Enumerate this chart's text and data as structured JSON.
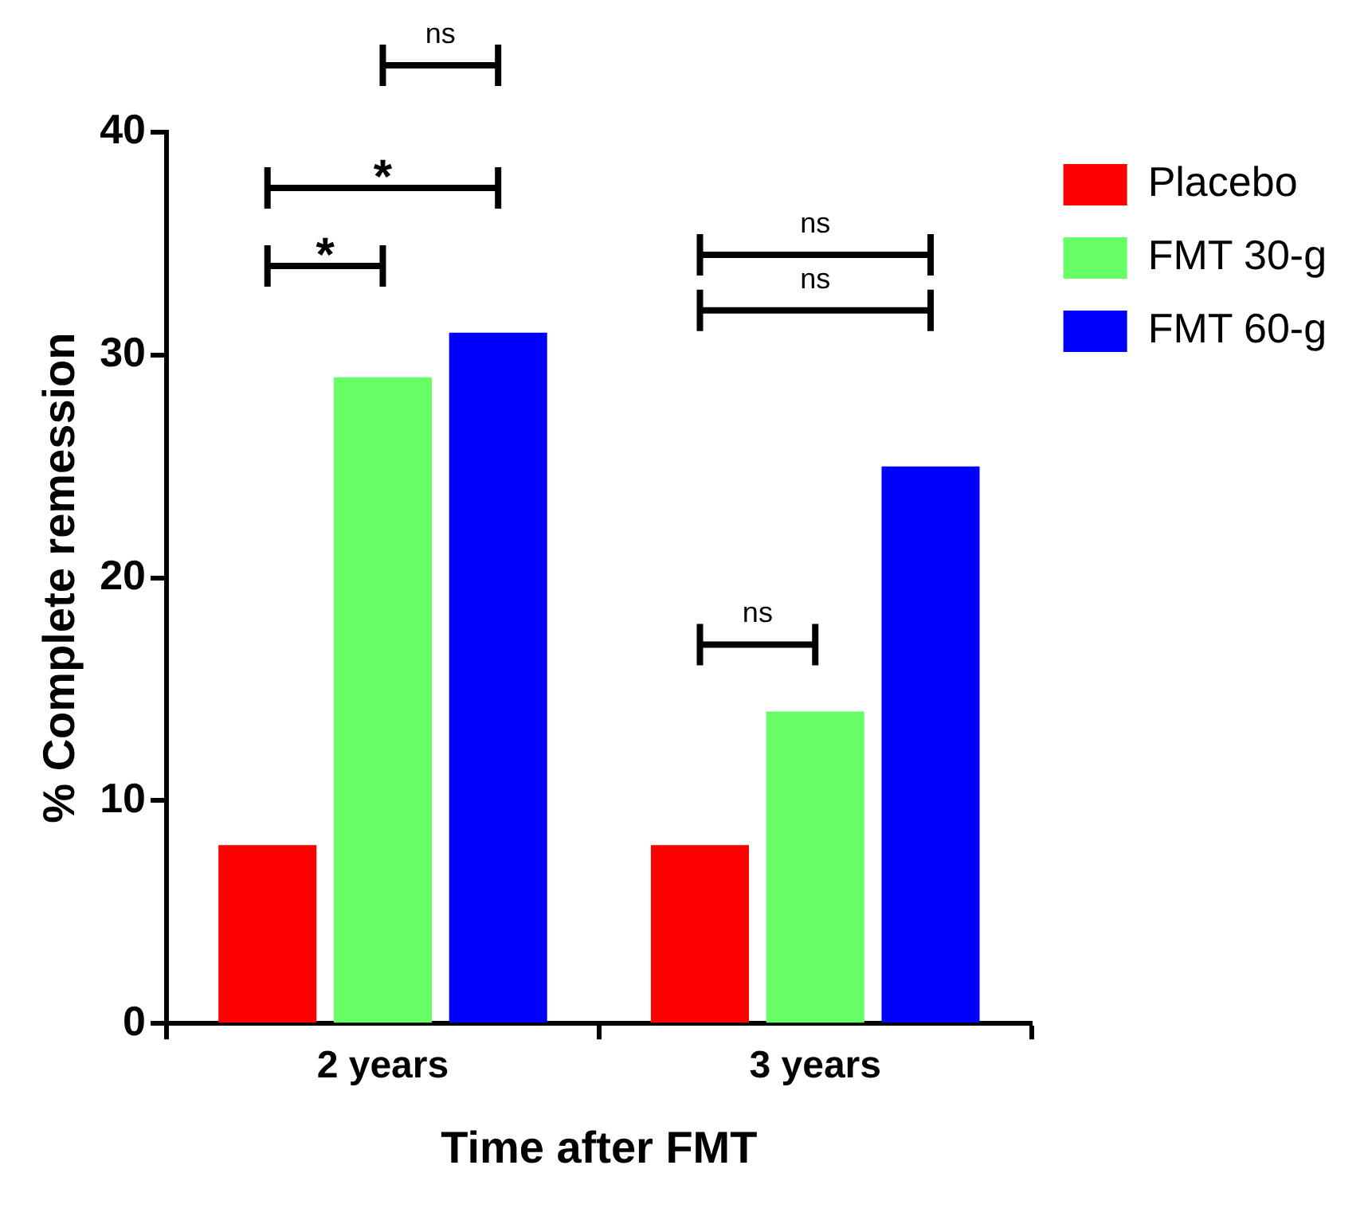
{
  "chart_data": {
    "type": "bar",
    "xlabel": "Time after FMT",
    "ylabel": "% Complete remession",
    "categories": [
      "2 years",
      "3 years"
    ],
    "series": [
      {
        "name": "Placebo",
        "color": "#ff0000",
        "values": [
          8,
          8
        ]
      },
      {
        "name": "FMT 30-g",
        "color": "#66ff66",
        "values": [
          29,
          14
        ]
      },
      {
        "name": "FMT 60-g",
        "color": "#0000ff",
        "values": [
          31,
          25
        ]
      }
    ],
    "ylim": [
      0,
      40
    ],
    "yticks": [
      0,
      10,
      20,
      30,
      40
    ],
    "legend": "top right",
    "annotations": [
      "ns",
      "*",
      "*",
      "ns",
      "ns",
      "ns"
    ]
  }
}
